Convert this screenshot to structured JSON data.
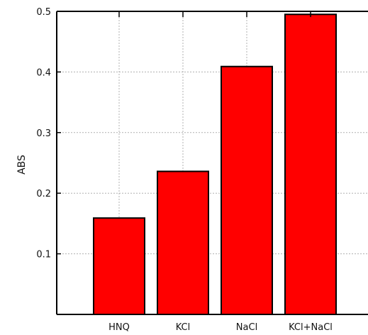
{
  "chart_data": {
    "type": "bar",
    "categories": [
      "HNQ",
      "KCl",
      "NaCl",
      "KCl+NaCl"
    ],
    "values": [
      0.159,
      0.236,
      0.409,
      0.495
    ],
    "ylabel": "ABS",
    "ylim": [
      0,
      0.5
    ],
    "yticks": [
      "0.1",
      "0.2",
      "0.3",
      "0.4",
      "0.5"
    ],
    "grid": true,
    "bar_color": "#ff0000",
    "edge_color": "#000000"
  }
}
